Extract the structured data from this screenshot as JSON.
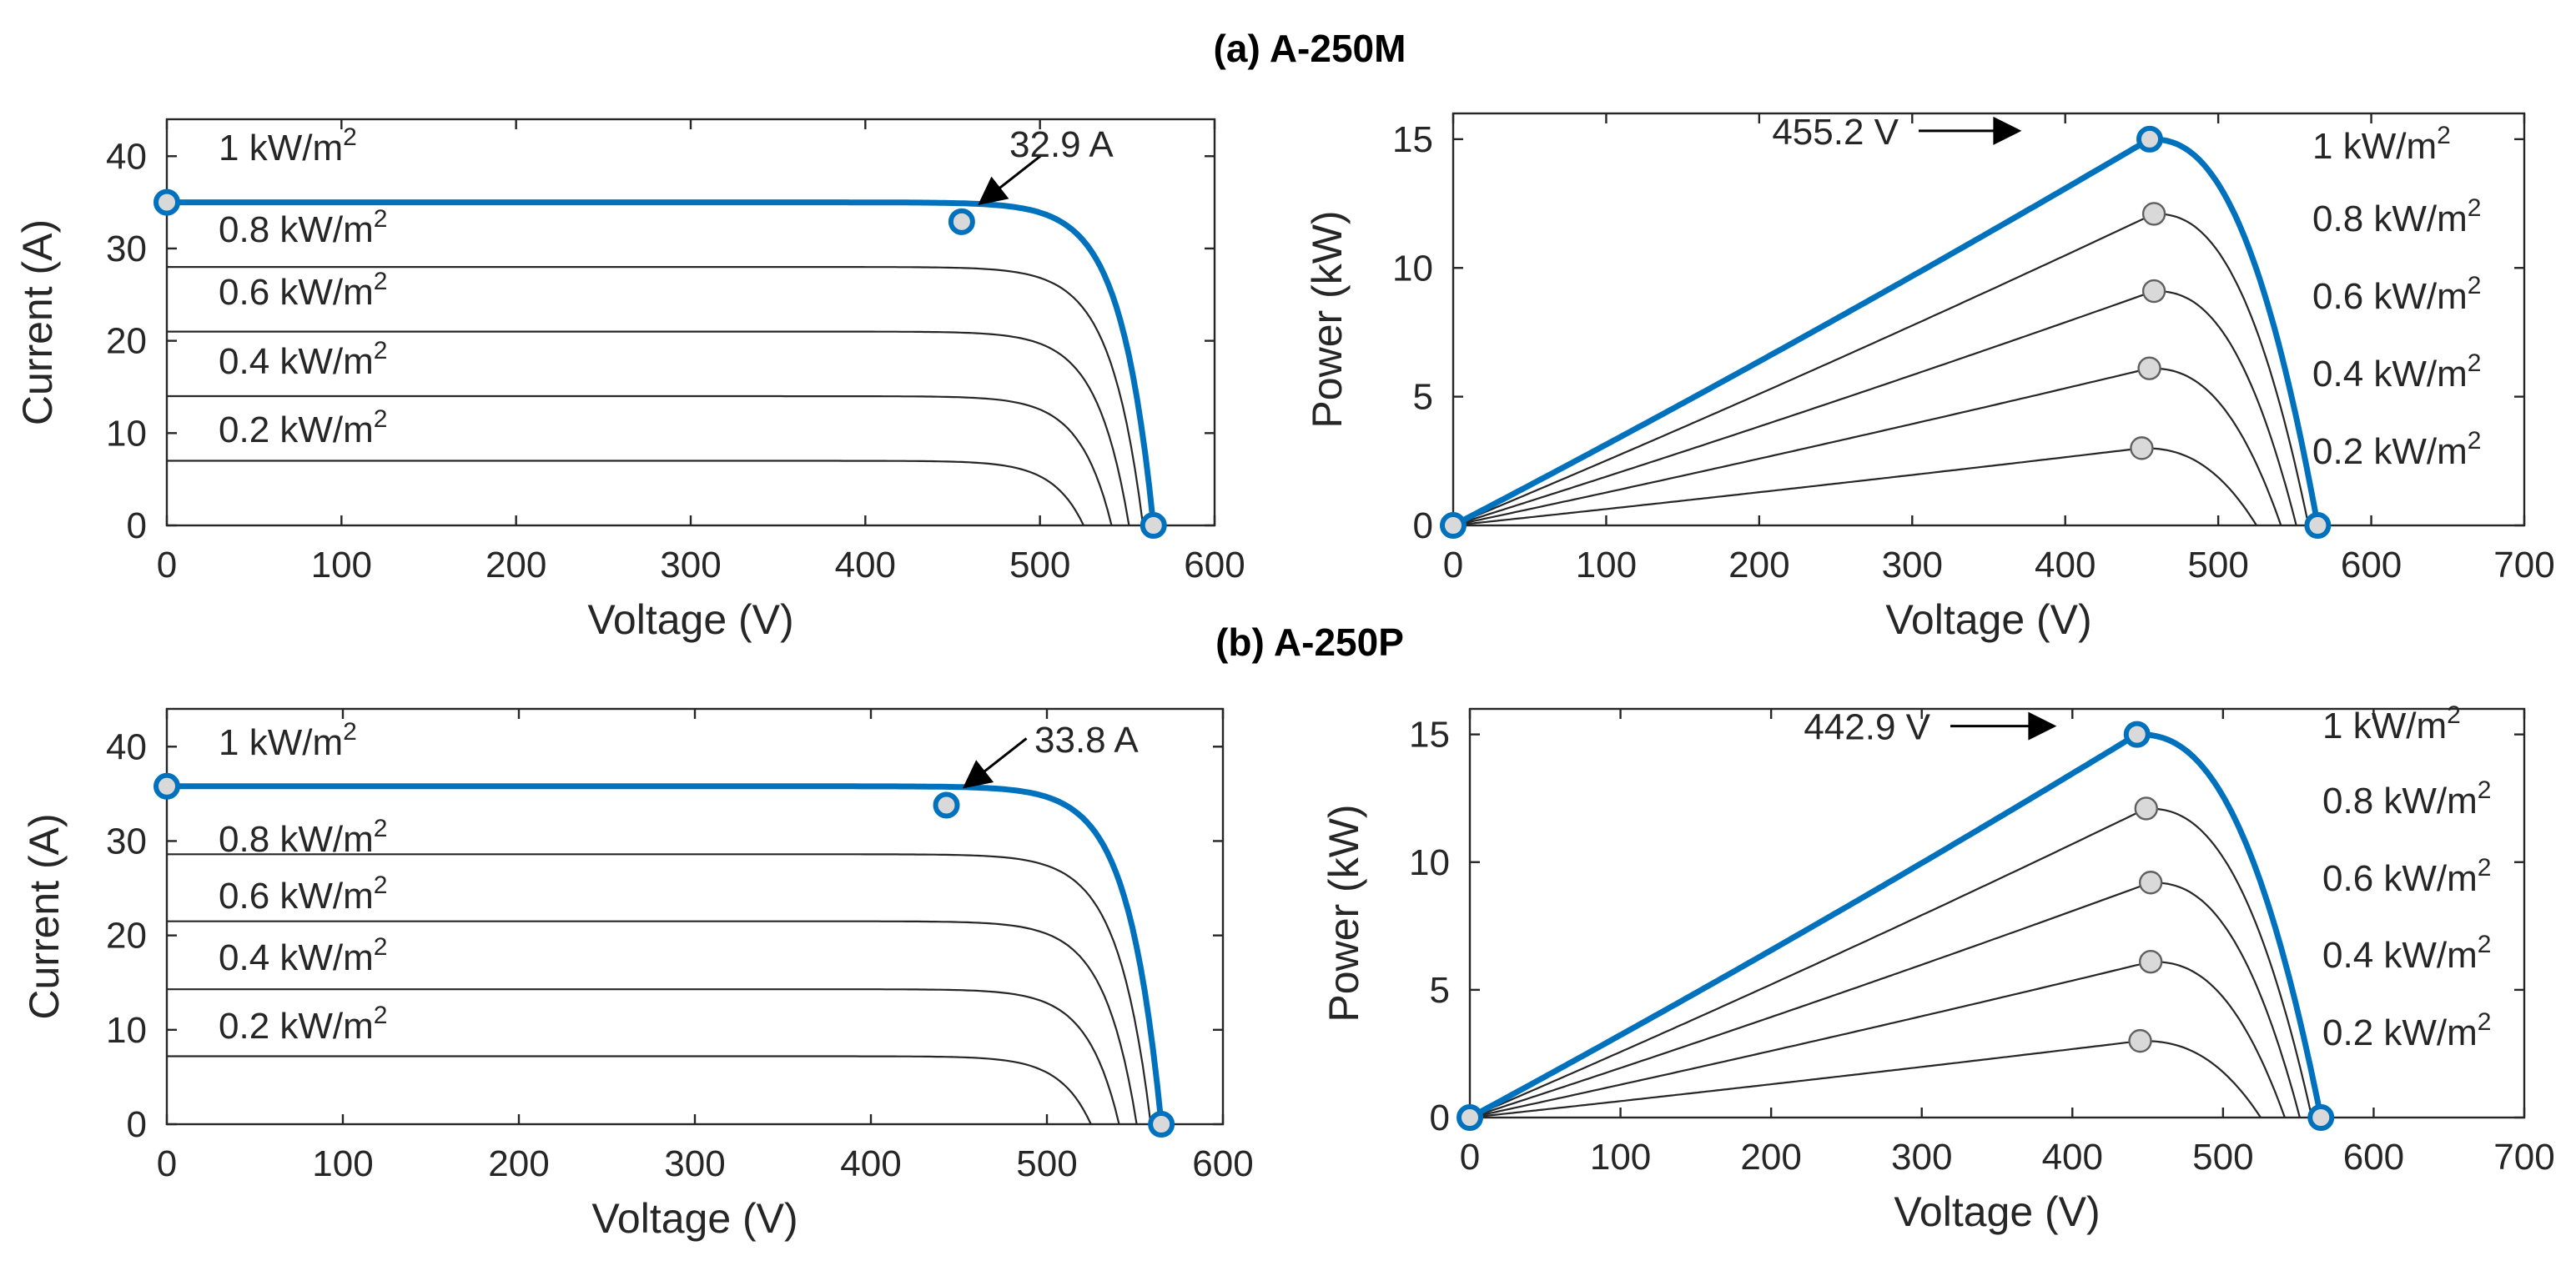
{
  "figure": {
    "titles": [
      "(a) A-250M",
      "(b) A-250P"
    ]
  },
  "colors": {
    "highlight": "#0072BD",
    "curve": "#262626",
    "axis": "#262626",
    "marker_fill": "#D9D9D9",
    "marker_edge": "#606060"
  },
  "chart_data": [
    {
      "id": "a-iv",
      "section": "(a) A-250M",
      "type": "line",
      "xlabel": "Voltage (V)",
      "ylabel": "Current (A)",
      "xlim": [
        0,
        600
      ],
      "ylim": [
        0,
        44
      ],
      "xticks": [
        0,
        100,
        200,
        300,
        400,
        500,
        600
      ],
      "yticks": [
        0,
        10,
        20,
        30,
        40
      ],
      "voc": 565,
      "mpp_voltage": 455.2,
      "series": [
        {
          "name": "1 kW/m2",
          "isc": 35.0,
          "voc": 565,
          "marker": [
            455.2,
            32.9
          ],
          "highlight": true
        },
        {
          "name": "0.8 kW/m2",
          "isc": 28.0,
          "voc": 559
        },
        {
          "name": "0.6 kW/m2",
          "isc": 21.0,
          "voc": 551
        },
        {
          "name": "0.4 kW/m2",
          "isc": 14.0,
          "voc": 541
        },
        {
          "name": "0.2 kW/m2",
          "isc": 7.0,
          "voc": 525
        }
      ],
      "label_text": [
        "1 kW/m",
        "0.8 kW/m",
        "0.6 kW/m",
        "0.4 kW/m",
        "0.2 kW/m"
      ],
      "label_sup": "2",
      "annotation": {
        "text": "32.9 A",
        "x": 455.2,
        "y": 32.9
      }
    },
    {
      "id": "a-pv",
      "section": "(a) A-250M",
      "type": "line",
      "xlabel": "Voltage (V)",
      "ylabel": "Power (kW)",
      "xlim": [
        0,
        700
      ],
      "ylim": [
        0,
        16
      ],
      "xticks": [
        0,
        100,
        200,
        300,
        400,
        500,
        600,
        700
      ],
      "yticks": [
        0,
        5,
        10,
        15
      ],
      "series": [
        {
          "name": "1 kW/m2",
          "peak": [
            455.2,
            15.0
          ],
          "voc": 565,
          "highlight": true
        },
        {
          "name": "0.8 kW/m2",
          "peak": [
            458,
            12.1
          ],
          "voc": 559
        },
        {
          "name": "0.6 kW/m2",
          "peak": [
            458,
            9.1
          ],
          "voc": 551
        },
        {
          "name": "0.4 kW/m2",
          "peak": [
            455,
            6.1
          ],
          "voc": 541
        },
        {
          "name": "0.2 kW/m2",
          "peak": [
            450,
            3.0
          ],
          "voc": 525
        }
      ],
      "label_text": [
        "1 kW/m",
        "0.8 kW/m",
        "0.6 kW/m",
        "0.4 kW/m",
        "0.2 kW/m"
      ],
      "label_sup": "2",
      "annotation": {
        "text": "455.2 V",
        "x": 455.2,
        "y": 15.0
      }
    },
    {
      "id": "b-iv",
      "section": "(b) A-250P",
      "type": "line",
      "xlabel": "Voltage (V)",
      "ylabel": "Current (A)",
      "xlim": [
        0,
        600
      ],
      "ylim": [
        0,
        44
      ],
      "xticks": [
        0,
        100,
        200,
        300,
        400,
        500,
        600
      ],
      "yticks": [
        0,
        10,
        20,
        30,
        40
      ],
      "series": [
        {
          "name": "1 kW/m2",
          "isc": 35.8,
          "voc": 565,
          "marker": [
            442.9,
            33.8
          ],
          "highlight": true
        },
        {
          "name": "0.8 kW/m2",
          "isc": 28.6,
          "voc": 559
        },
        {
          "name": "0.6 kW/m2",
          "isc": 21.5,
          "voc": 551
        },
        {
          "name": "0.4 kW/m2",
          "isc": 14.3,
          "voc": 541
        },
        {
          "name": "0.2 kW/m2",
          "isc": 7.2,
          "voc": 525
        }
      ],
      "label_text": [
        "1 kW/m",
        "0.8 kW/m",
        "0.6 kW/m",
        "0.4 kW/m",
        "0.2 kW/m"
      ],
      "label_sup": "2",
      "annotation": {
        "text": "33.8 A",
        "x": 442.9,
        "y": 33.8
      }
    },
    {
      "id": "b-pv",
      "section": "(b) A-250P",
      "type": "line",
      "xlabel": "Voltage (V)",
      "ylabel": "Power (kW)",
      "xlim": [
        0,
        700
      ],
      "ylim": [
        0,
        16
      ],
      "xticks": [
        0,
        100,
        200,
        300,
        400,
        500,
        600,
        700
      ],
      "yticks": [
        0,
        5,
        10,
        15
      ],
      "series": [
        {
          "name": "1 kW/m2",
          "peak": [
            442.9,
            15.0
          ],
          "voc": 565,
          "highlight": true
        },
        {
          "name": "0.8 kW/m2",
          "peak": [
            449,
            12.1
          ],
          "voc": 559
        },
        {
          "name": "0.6 kW/m2",
          "peak": [
            452,
            9.2
          ],
          "voc": 551
        },
        {
          "name": "0.4 kW/m2",
          "peak": [
            452,
            6.1
          ],
          "voc": 541
        },
        {
          "name": "0.2 kW/m2",
          "peak": [
            445,
            3.0
          ],
          "voc": 525
        }
      ],
      "label_text": [
        "1 kW/m",
        "0.8 kW/m",
        "0.6 kW/m",
        "0.4 kW/m",
        "0.2 kW/m"
      ],
      "label_sup": "2",
      "annotation": {
        "text": "442.9 V",
        "x": 442.9,
        "y": 15.0
      }
    }
  ]
}
